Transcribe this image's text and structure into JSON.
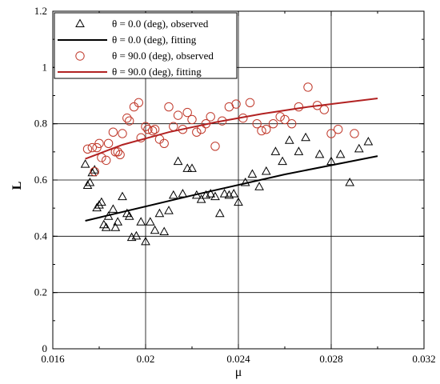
{
  "chart_data": {
    "type": "scatter",
    "xlabel": "μ",
    "ylabel": "L",
    "xlim": [
      0.016,
      0.032
    ],
    "ylim": [
      0,
      1.2
    ],
    "xticks": [
      {
        "value": 0.016,
        "label": "0.016"
      },
      {
        "value": 0.02,
        "label": "0.02"
      },
      {
        "value": 0.024,
        "label": "0.024"
      },
      {
        "value": 0.028,
        "label": "0.028"
      },
      {
        "value": 0.032,
        "label": "0.032"
      }
    ],
    "yticks": [
      {
        "value": 0,
        "label": "0"
      },
      {
        "value": 0.2,
        "label": "0.2"
      },
      {
        "value": 0.4,
        "label": "0.4"
      },
      {
        "value": 0.6,
        "label": "0.6"
      },
      {
        "value": 0.8,
        "label": "0.8"
      },
      {
        "value": 1.0,
        "label": "1"
      },
      {
        "value": 1.2,
        "label": "1.2"
      }
    ],
    "grid": true,
    "legend_position": "top-left",
    "series": [
      {
        "name": "θ = 0.0 (deg), observed",
        "kind": "marker",
        "marker": "triangle",
        "color": "#000000",
        "points": [
          [
            0.0174,
            0.655
          ],
          [
            0.0175,
            0.58
          ],
          [
            0.0176,
            0.59
          ],
          [
            0.0177,
            0.625
          ],
          [
            0.0178,
            0.635
          ],
          [
            0.0179,
            0.5
          ],
          [
            0.018,
            0.51
          ],
          [
            0.0181,
            0.52
          ],
          [
            0.0182,
            0.44
          ],
          [
            0.0183,
            0.43
          ],
          [
            0.0184,
            0.47
          ],
          [
            0.0186,
            0.495
          ],
          [
            0.0187,
            0.43
          ],
          [
            0.0188,
            0.45
          ],
          [
            0.019,
            0.54
          ],
          [
            0.0192,
            0.48
          ],
          [
            0.0193,
            0.47
          ],
          [
            0.0194,
            0.395
          ],
          [
            0.0196,
            0.4
          ],
          [
            0.0198,
            0.45
          ],
          [
            0.02,
            0.38
          ],
          [
            0.0202,
            0.45
          ],
          [
            0.0204,
            0.42
          ],
          [
            0.0206,
            0.48
          ],
          [
            0.0208,
            0.415
          ],
          [
            0.021,
            0.49
          ],
          [
            0.0212,
            0.545
          ],
          [
            0.0214,
            0.665
          ],
          [
            0.0216,
            0.55
          ],
          [
            0.0218,
            0.64
          ],
          [
            0.022,
            0.64
          ],
          [
            0.0222,
            0.545
          ],
          [
            0.0224,
            0.53
          ],
          [
            0.0226,
            0.545
          ],
          [
            0.0228,
            0.55
          ],
          [
            0.023,
            0.54
          ],
          [
            0.0232,
            0.48
          ],
          [
            0.0234,
            0.55
          ],
          [
            0.0236,
            0.545
          ],
          [
            0.0238,
            0.55
          ],
          [
            0.024,
            0.52
          ],
          [
            0.0243,
            0.59
          ],
          [
            0.0246,
            0.62
          ],
          [
            0.0249,
            0.575
          ],
          [
            0.0252,
            0.63
          ],
          [
            0.0256,
            0.7
          ],
          [
            0.0259,
            0.665
          ],
          [
            0.0262,
            0.74
          ],
          [
            0.0266,
            0.7
          ],
          [
            0.0269,
            0.75
          ],
          [
            0.0275,
            0.69
          ],
          [
            0.028,
            0.665
          ],
          [
            0.0284,
            0.69
          ],
          [
            0.0288,
            0.59
          ],
          [
            0.0292,
            0.71
          ],
          [
            0.0296,
            0.735
          ]
        ]
      },
      {
        "name": "θ = 0.0 (deg), fitting",
        "kind": "line",
        "color": "#000000",
        "points": [
          [
            0.0174,
            0.455
          ],
          [
            0.022,
            0.545
          ],
          [
            0.026,
            0.62
          ],
          [
            0.03,
            0.685
          ]
        ]
      },
      {
        "name": "θ = 90.0 (deg), observed",
        "kind": "marker",
        "marker": "circle",
        "color": "#c0392b",
        "points": [
          [
            0.0175,
            0.71
          ],
          [
            0.0177,
            0.715
          ],
          [
            0.0178,
            0.63
          ],
          [
            0.0179,
            0.715
          ],
          [
            0.018,
            0.73
          ],
          [
            0.0181,
            0.68
          ],
          [
            0.0183,
            0.67
          ],
          [
            0.0184,
            0.73
          ],
          [
            0.0186,
            0.77
          ],
          [
            0.0187,
            0.7
          ],
          [
            0.0188,
            0.7
          ],
          [
            0.0189,
            0.69
          ],
          [
            0.019,
            0.765
          ],
          [
            0.0192,
            0.82
          ],
          [
            0.0193,
            0.81
          ],
          [
            0.0195,
            0.86
          ],
          [
            0.0197,
            0.875
          ],
          [
            0.0198,
            0.75
          ],
          [
            0.02,
            0.79
          ],
          [
            0.0201,
            0.78
          ],
          [
            0.0203,
            0.775
          ],
          [
            0.0204,
            0.78
          ],
          [
            0.0206,
            0.745
          ],
          [
            0.0208,
            0.73
          ],
          [
            0.021,
            0.86
          ],
          [
            0.0212,
            0.79
          ],
          [
            0.0214,
            0.83
          ],
          [
            0.0216,
            0.78
          ],
          [
            0.0218,
            0.84
          ],
          [
            0.022,
            0.815
          ],
          [
            0.0222,
            0.77
          ],
          [
            0.0224,
            0.78
          ],
          [
            0.0226,
            0.8
          ],
          [
            0.0228,
            0.825
          ],
          [
            0.023,
            0.72
          ],
          [
            0.0233,
            0.81
          ],
          [
            0.0236,
            0.86
          ],
          [
            0.0239,
            0.87
          ],
          [
            0.0242,
            0.82
          ],
          [
            0.0245,
            0.875
          ],
          [
            0.0248,
            0.8
          ],
          [
            0.025,
            0.775
          ],
          [
            0.0252,
            0.78
          ],
          [
            0.0255,
            0.8
          ],
          [
            0.0258,
            0.825
          ],
          [
            0.026,
            0.815
          ],
          [
            0.0263,
            0.8
          ],
          [
            0.0266,
            0.86
          ],
          [
            0.027,
            0.93
          ],
          [
            0.0274,
            0.865
          ],
          [
            0.0277,
            0.85
          ],
          [
            0.028,
            0.765
          ],
          [
            0.0283,
            0.78
          ],
          [
            0.029,
            0.765
          ]
        ]
      },
      {
        "name": "θ = 90.0 (deg), fitting",
        "kind": "line",
        "color": "#b22222",
        "points": [
          [
            0.0174,
            0.675
          ],
          [
            0.019,
            0.725
          ],
          [
            0.021,
            0.77
          ],
          [
            0.023,
            0.805
          ],
          [
            0.025,
            0.835
          ],
          [
            0.027,
            0.86
          ],
          [
            0.03,
            0.89
          ]
        ]
      }
    ]
  }
}
